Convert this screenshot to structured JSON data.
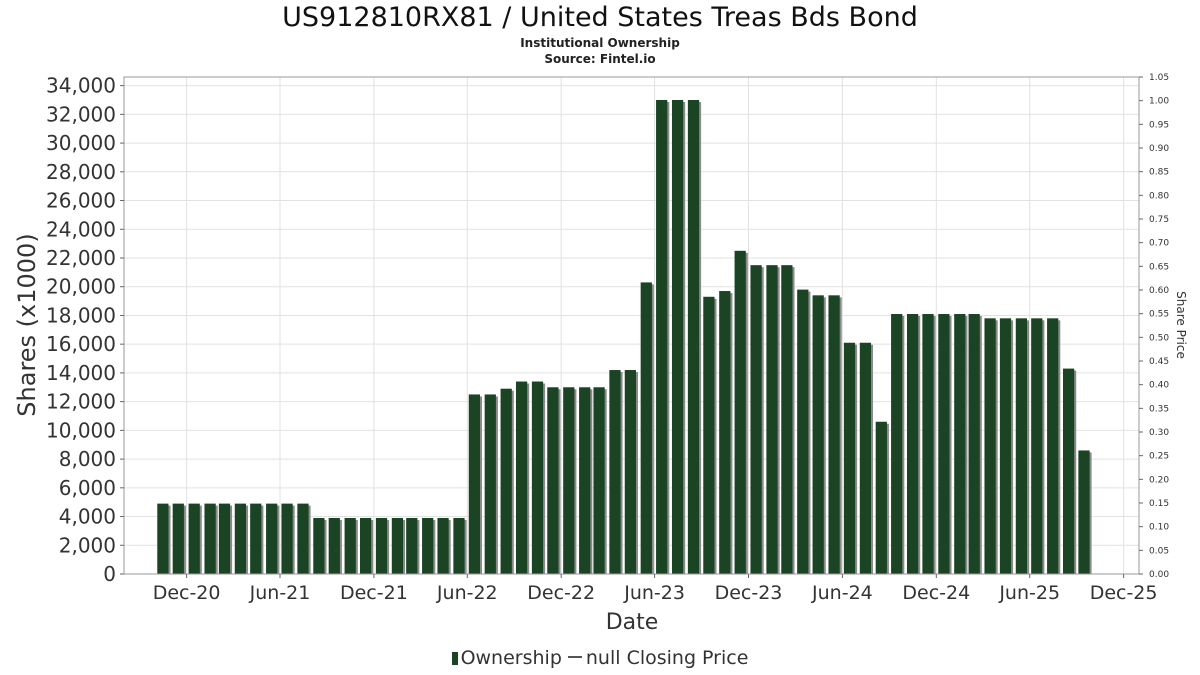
{
  "chart_data": {
    "type": "bar",
    "title": "US912810RX81 / United States Treas Bds Bond",
    "subtitle_lines": [
      "Institutional Ownership",
      "Source: Fintel.io"
    ],
    "xlabel": "Date",
    "ylabel": "Shares (x1000)",
    "y2label": "Share Price",
    "ylim": [
      0,
      34600
    ],
    "y2lim": [
      0,
      1.05
    ],
    "x_range": [
      "2020-08-01",
      "2025-12-31"
    ],
    "grid": true,
    "legend_position": "bottom",
    "yticks": [
      0,
      2000,
      4000,
      6000,
      8000,
      10000,
      12000,
      14000,
      16000,
      18000,
      20000,
      22000,
      24000,
      26000,
      28000,
      30000,
      32000,
      34000
    ],
    "ytick_labels": [
      "0",
      "2,000",
      "4,000",
      "6,000",
      "8,000",
      "10,000",
      "12,000",
      "14,000",
      "16,000",
      "18,000",
      "20,000",
      "22,000",
      "24,000",
      "26,000",
      "28,000",
      "30,000",
      "32,000",
      "34,000"
    ],
    "y2ticks": [
      0,
      0.05,
      0.1,
      0.15,
      0.2,
      0.25,
      0.3,
      0.35,
      0.4,
      0.45,
      0.5,
      0.55,
      0.6,
      0.65,
      0.7,
      0.75,
      0.8,
      0.85,
      0.9,
      0.95,
      1.0,
      1.05
    ],
    "y2tick_labels": [
      "0.00",
      "0.05",
      "0.10",
      "0.15",
      "0.20",
      "0.25",
      "0.30",
      "0.35",
      "0.40",
      "0.45",
      "0.50",
      "0.55",
      "0.60",
      "0.65",
      "0.70",
      "0.75",
      "0.80",
      "0.85",
      "0.90",
      "0.95",
      "1.00",
      "1.05"
    ],
    "xticks": [
      "2020-12-01",
      "2021-06-01",
      "2021-12-01",
      "2022-06-01",
      "2022-12-01",
      "2023-06-01",
      "2023-12-01",
      "2024-06-01",
      "2024-12-01",
      "2025-06-01",
      "2025-12-01"
    ],
    "xtick_labels": [
      "Dec-20",
      "Jun-21",
      "Dec-21",
      "Jun-22",
      "Dec-22",
      "Jun-23",
      "Dec-23",
      "Jun-24",
      "Dec-24",
      "Jun-25",
      "Dec-25"
    ],
    "legend": [
      "Ownership",
      "null Closing Price"
    ],
    "bar_color": "#1a4424",
    "bar_shadow_color": "#8a8a8a",
    "series": [
      {
        "name": "Ownership",
        "x": [
          "2020-10-31",
          "2020-11-30",
          "2020-12-31",
          "2021-01-31",
          "2021-02-28",
          "2021-03-31",
          "2021-04-30",
          "2021-05-31",
          "2021-06-30",
          "2021-07-31",
          "2021-08-31",
          "2021-09-30",
          "2021-10-31",
          "2021-11-30",
          "2021-12-31",
          "2022-01-31",
          "2022-02-28",
          "2022-03-31",
          "2022-04-30",
          "2022-05-31",
          "2022-06-30",
          "2022-07-31",
          "2022-08-31",
          "2022-09-30",
          "2022-10-31",
          "2022-11-30",
          "2022-12-31",
          "2023-01-31",
          "2023-02-28",
          "2023-03-31",
          "2023-04-30",
          "2023-05-31",
          "2023-06-30",
          "2023-07-31",
          "2023-08-31",
          "2023-09-30",
          "2023-10-31",
          "2023-11-30",
          "2023-12-31",
          "2024-01-31",
          "2024-02-29",
          "2024-03-31",
          "2024-04-30",
          "2024-05-31",
          "2024-06-30",
          "2024-07-31",
          "2024-08-31",
          "2024-09-30",
          "2024-10-31",
          "2024-11-30",
          "2024-12-31",
          "2025-01-31",
          "2025-02-28",
          "2025-03-31",
          "2025-04-30",
          "2025-05-31",
          "2025-06-30",
          "2025-07-31",
          "2025-08-31",
          "2025-09-30"
        ],
        "values": [
          4900,
          4900,
          4900,
          4900,
          4900,
          4900,
          4900,
          4900,
          4900,
          4900,
          3900,
          3900,
          3900,
          3900,
          3900,
          3900,
          3900,
          3900,
          3900,
          3900,
          12500,
          12500,
          12900,
          13400,
          13400,
          13000,
          13000,
          13000,
          13000,
          14200,
          14200,
          20300,
          33000,
          33000,
          33000,
          19300,
          19700,
          22500,
          21500,
          21500,
          21500,
          19800,
          19400,
          19400,
          16100,
          16100,
          10600,
          18100,
          18100,
          18100,
          18100,
          18100,
          18100,
          17800,
          17800,
          17800,
          17800,
          17800,
          14300,
          8600
        ]
      }
    ]
  }
}
